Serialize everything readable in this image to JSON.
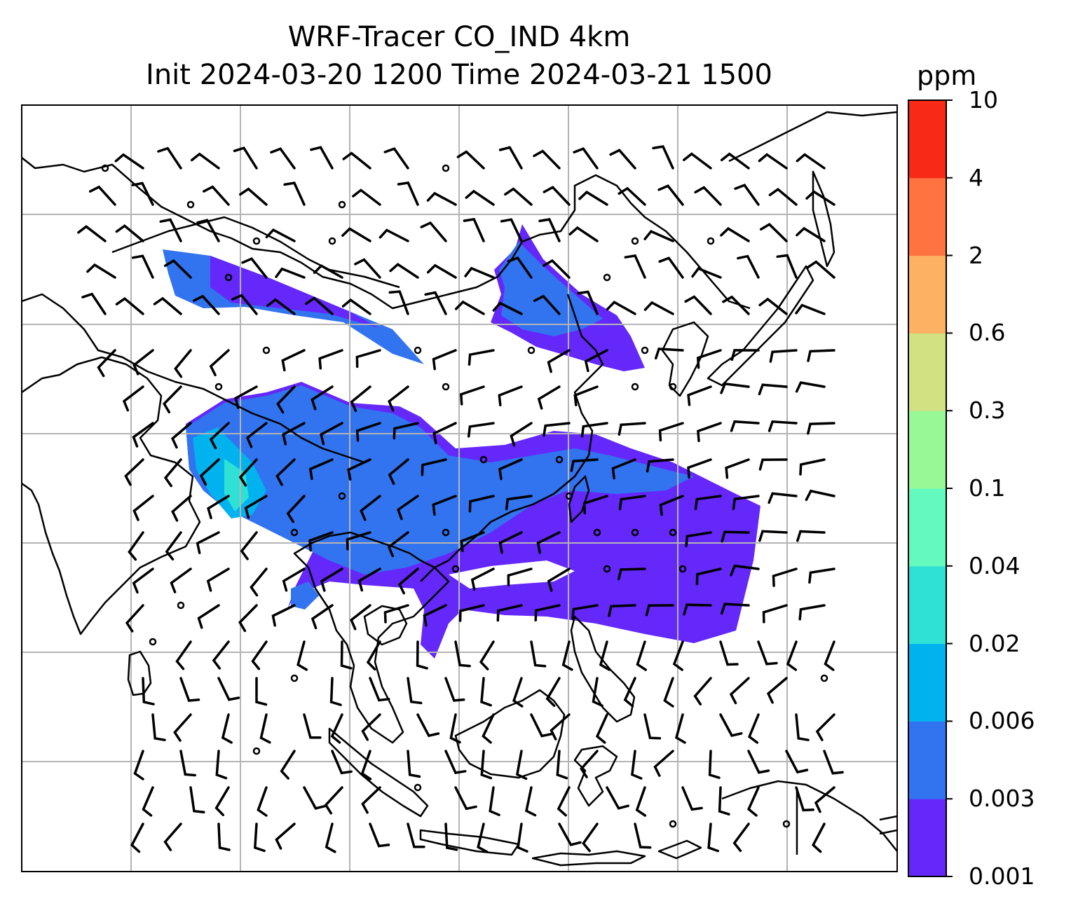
{
  "title": {
    "line1": "WRF-Tracer CO_IND 4km",
    "line2": "Init 2024-03-20 1200 Time 2024-03-21 1500"
  },
  "colorbar": {
    "unit": "ppm",
    "ticks": [
      "0.001",
      "0.003",
      "0.006",
      "0.02",
      "0.04",
      "0.1",
      "0.3",
      "0.6",
      "2",
      "4",
      "10"
    ],
    "colors": [
      "#6428fa",
      "#3273f0",
      "#00b3ee",
      "#2fe1d5",
      "#64fabe",
      "#96f996",
      "#d2e182",
      "#fdb163",
      "#fe7340",
      "#f92918"
    ]
  },
  "map": {
    "grid_color": "#b4b4b4",
    "coast_color": "#000000",
    "background": "#ffffff"
  }
}
